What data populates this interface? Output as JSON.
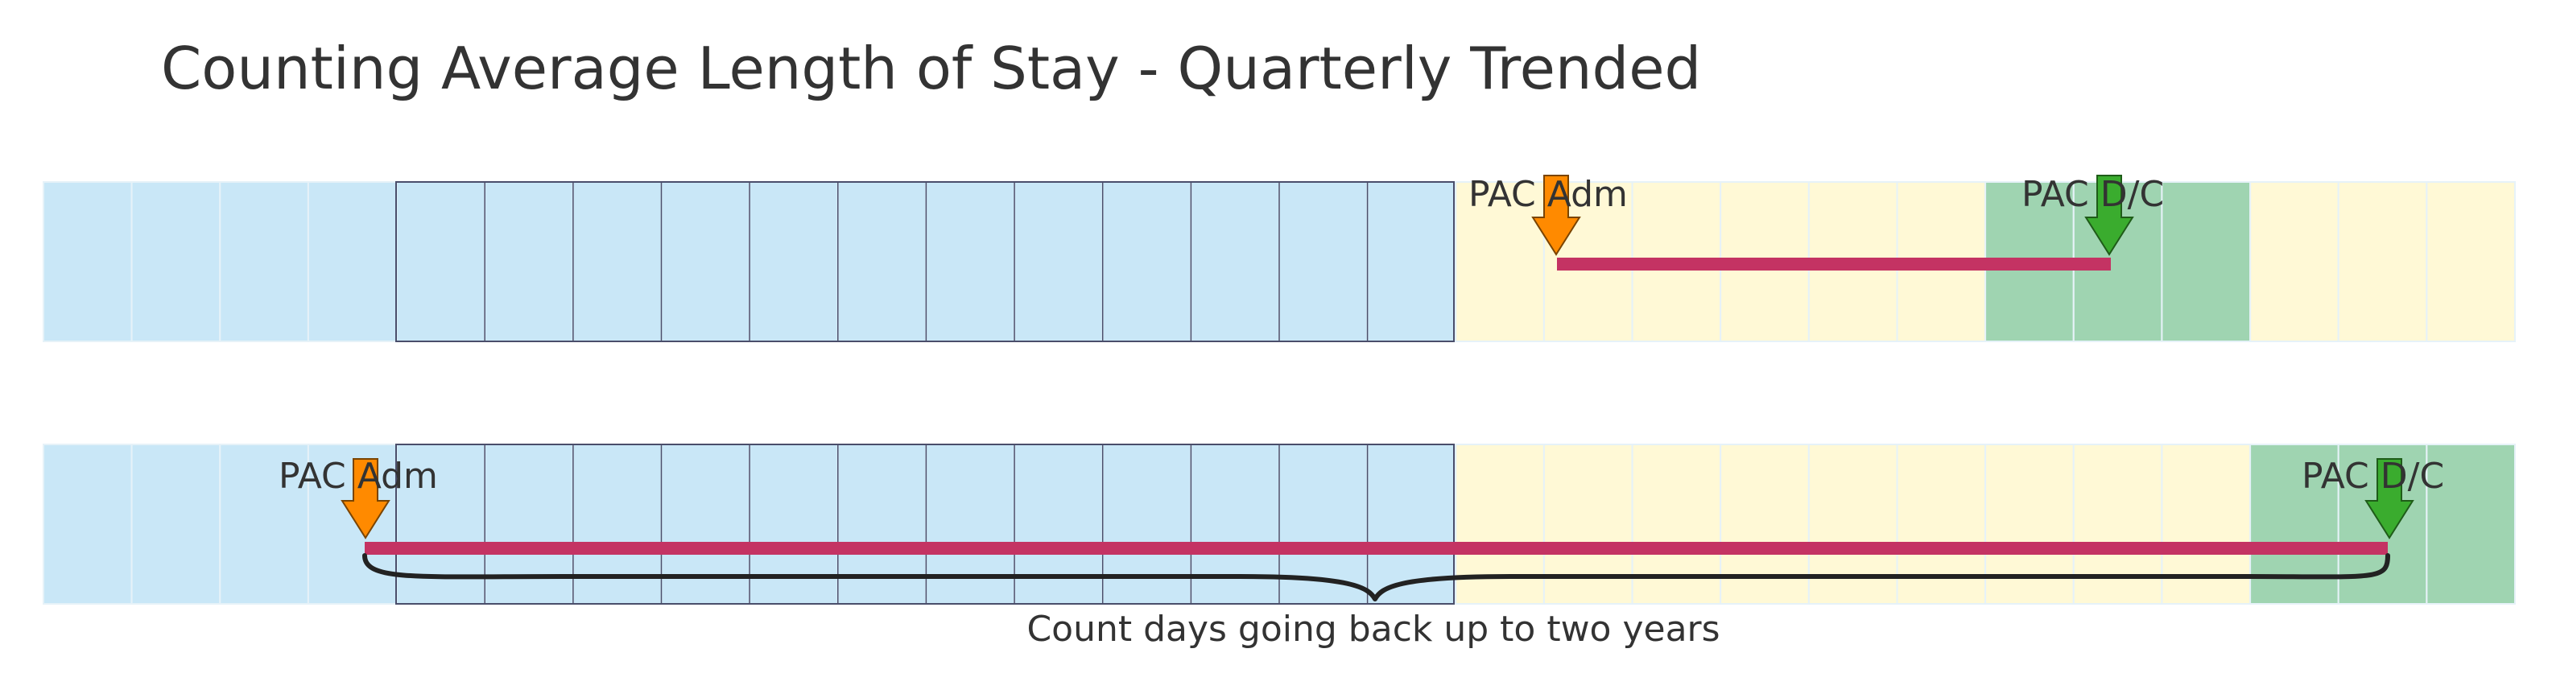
{
  "title": "Counting Average Length of Stay - Quarterly Trended",
  "colors": {
    "past_period": "#c9e7f7",
    "current_quarter": "#fff9d6",
    "discharge_zone": "#9fd4b1",
    "grid_line": "#e6f2f8",
    "window_outline": "#4a4e6b",
    "stay_bar": "#c43363",
    "admit_arrow": "#ff8a00",
    "discharge_arrow": "#3aac2e",
    "brace": "#222222"
  },
  "rows": [
    {
      "id": "short-stay",
      "admit_label": "PAC Adm",
      "discharge_label": "PAC D/C",
      "discharge_zone_cells": [
        22,
        23,
        24
      ]
    },
    {
      "id": "long-stay",
      "admit_label": "PAC Adm",
      "discharge_label": "PAC D/C",
      "discharge_zone_cells": [
        25,
        26,
        27
      ]
    }
  ],
  "caption": "Count days going back up to two years"
}
